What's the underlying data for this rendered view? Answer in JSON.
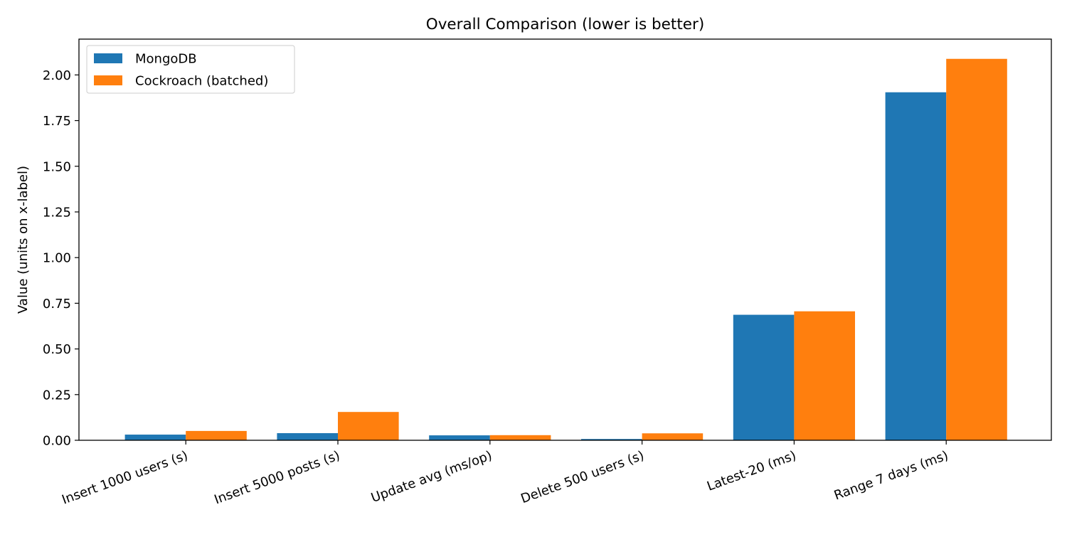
{
  "chart_data": {
    "type": "bar",
    "title": "Overall Comparison (lower is better)",
    "xlabel": "",
    "ylabel": "Value (units on x-label)",
    "categories": [
      "Insert 1000 users (s)",
      "Insert 5000 posts (s)",
      "Update avg (ms/op)",
      "Delete 500 users (s)",
      "Latest-20 (ms)",
      "Range 7 days (ms)"
    ],
    "series": [
      {
        "name": "MongoDB",
        "color": "#1f77b4",
        "values": [
          0.031,
          0.039,
          0.027,
          0.007,
          0.687,
          1.905
        ]
      },
      {
        "name": "Cockroach (batched)",
        "color": "#ff7f0e",
        "values": [
          0.051,
          0.155,
          0.028,
          0.038,
          0.706,
          2.088
        ]
      }
    ],
    "ylim": [
      0,
      2.196
    ],
    "yticks": [
      0.0,
      0.25,
      0.5,
      0.75,
      1.0,
      1.25,
      1.5,
      1.75,
      2.0
    ],
    "ytick_labels": [
      "0.00",
      "0.25",
      "0.50",
      "0.75",
      "1.00",
      "1.25",
      "1.50",
      "1.75",
      "2.00"
    ],
    "grid": false,
    "legend_position": "top-left"
  }
}
